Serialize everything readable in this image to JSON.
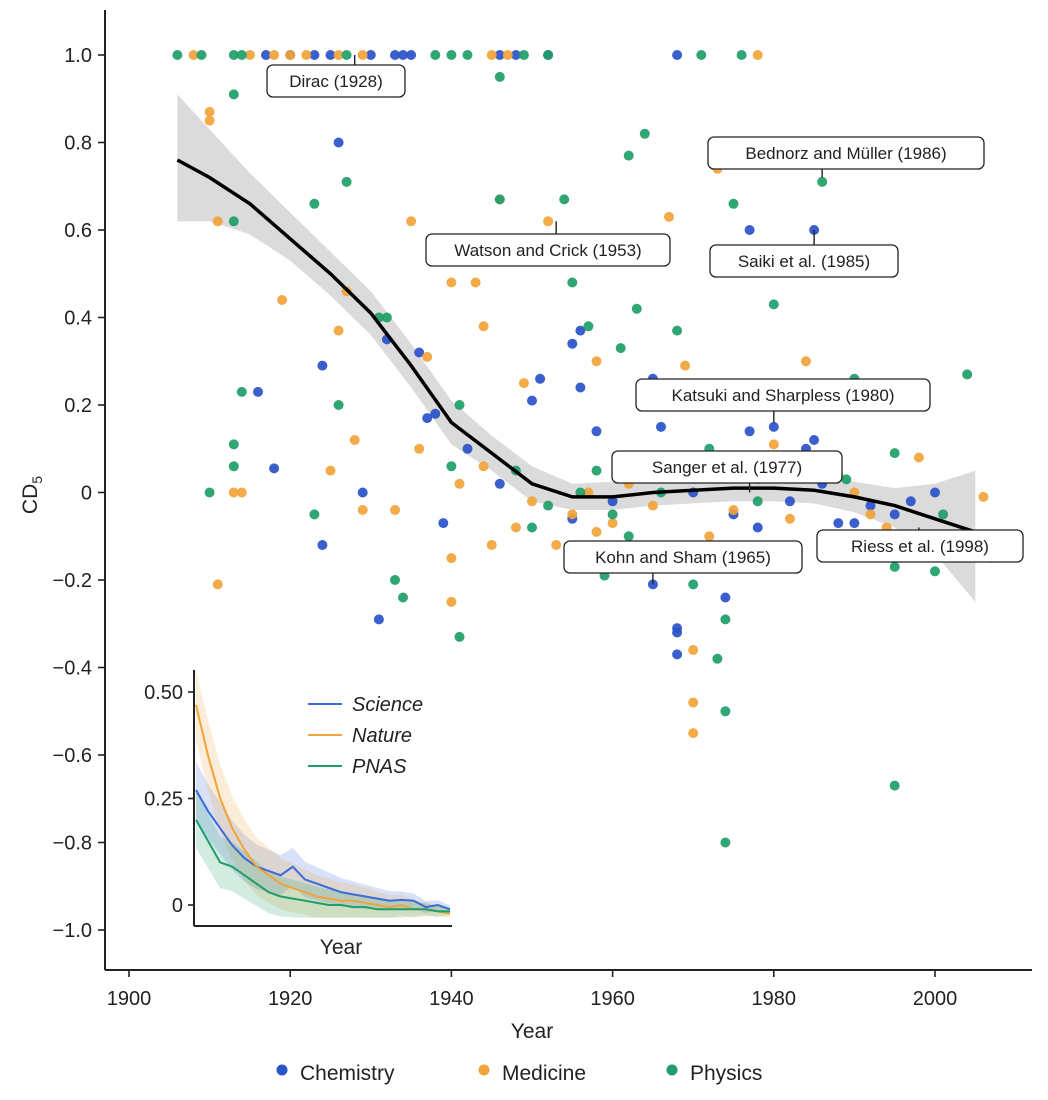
{
  "chart_data": {
    "type": "scatter",
    "xlabel": "Year",
    "ylabel": "CD",
    "ylabel_sub": "5",
    "xlim": [
      1897,
      2012
    ],
    "ylim": [
      -1.1,
      1.1
    ],
    "x_ticks": [
      1900,
      1920,
      1940,
      1960,
      1980,
      2000
    ],
    "y_ticks": [
      1.0,
      0.8,
      0.6,
      0.4,
      0.2,
      0,
      -0.2,
      -0.4,
      -0.6,
      -0.8,
      -1.0
    ],
    "y_tick_labels": [
      "1.0",
      "0.8",
      "0.6",
      "0.4",
      "0.2",
      "0",
      "−0.2",
      "−0.4",
      "−0.6",
      "−0.8",
      "−1.0"
    ],
    "legend": [
      {
        "name": "Chemistry",
        "color": "#2a53c9"
      },
      {
        "name": "Medicine",
        "color": "#f2a33a"
      },
      {
        "name": "Physics",
        "color": "#1e9e68"
      }
    ],
    "series": [
      {
        "name": "Chemistry",
        "color": "#2a53c9",
        "points": [
          [
            1917,
            1.0
          ],
          [
            1920,
            1.0
          ],
          [
            1923,
            1.0
          ],
          [
            1925,
            1.0
          ],
          [
            1930,
            1.0
          ],
          [
            1933,
            1.0
          ],
          [
            1934,
            1.0
          ],
          [
            1935,
            1.0
          ],
          [
            1946,
            1.0
          ],
          [
            1948,
            1.0
          ],
          [
            1952,
            1.0
          ],
          [
            1968,
            1.0
          ],
          [
            1926,
            0.8
          ],
          [
            1977,
            0.6
          ],
          [
            1985,
            0.6
          ],
          [
            1924,
            0.29
          ],
          [
            1916,
            0.23
          ],
          [
            1932,
            0.35
          ],
          [
            1936,
            0.32
          ],
          [
            1937,
            0.17
          ],
          [
            1938,
            0.18
          ],
          [
            1918,
            0.055
          ],
          [
            1924,
            -0.12
          ],
          [
            1929,
            0.0
          ],
          [
            1931,
            -0.29
          ],
          [
            1939,
            -0.07
          ],
          [
            1942,
            0.1
          ],
          [
            1946,
            0.02
          ],
          [
            1950,
            0.21
          ],
          [
            1951,
            0.26
          ],
          [
            1955,
            0.34
          ],
          [
            1956,
            0.37
          ],
          [
            1956,
            0.24
          ],
          [
            1958,
            0.14
          ],
          [
            1965,
            0.26
          ],
          [
            1966,
            0.15
          ],
          [
            1968,
            -0.31
          ],
          [
            1968,
            -0.32
          ],
          [
            1968,
            -0.37
          ],
          [
            1965,
            -0.21
          ],
          [
            1974,
            -0.24
          ],
          [
            1970,
            0.0
          ],
          [
            1972,
            0.08
          ],
          [
            1977,
            0.14
          ],
          [
            1980,
            0.15
          ],
          [
            1984,
            0.1
          ],
          [
            1985,
            0.12
          ],
          [
            1975,
            -0.05
          ],
          [
            1982,
            -0.02
          ],
          [
            1988,
            -0.07
          ],
          [
            1990,
            -0.07
          ],
          [
            1992,
            -0.03
          ],
          [
            1995,
            -0.05
          ],
          [
            1997,
            -0.02
          ],
          [
            2000,
            0.0
          ],
          [
            1960,
            -0.02
          ],
          [
            1955,
            -0.06
          ],
          [
            1962,
            0.03
          ],
          [
            1978,
            -0.08
          ],
          [
            1986,
            0.02
          ]
        ]
      },
      {
        "name": "Medicine",
        "color": "#f2a33a",
        "points": [
          [
            1908,
            1.0
          ],
          [
            1915,
            1.0
          ],
          [
            1918,
            1.0
          ],
          [
            1920,
            1.0
          ],
          [
            1922,
            1.0
          ],
          [
            1926,
            1.0
          ],
          [
            1929,
            1.0
          ],
          [
            1945,
            1.0
          ],
          [
            1947,
            1.0
          ],
          [
            1978,
            1.0
          ],
          [
            1910,
            0.87
          ],
          [
            1910,
            0.85
          ],
          [
            1911,
            0.62
          ],
          [
            1913,
            0.0
          ],
          [
            1914,
            0.0
          ],
          [
            1911,
            -0.21
          ],
          [
            1919,
            0.44
          ],
          [
            1927,
            0.46
          ],
          [
            1926,
            0.37
          ],
          [
            1935,
            0.62
          ],
          [
            1937,
            0.31
          ],
          [
            1940,
            0.48
          ],
          [
            1943,
            0.48
          ],
          [
            1944,
            0.38
          ],
          [
            1946,
            0.67
          ],
          [
            1952,
            0.62
          ],
          [
            1967,
            0.63
          ],
          [
            1973,
            0.74
          ],
          [
            1969,
            0.29
          ],
          [
            1984,
            0.3
          ],
          [
            1980,
            0.11
          ],
          [
            1928,
            0.12
          ],
          [
            1925,
            0.05
          ],
          [
            1929,
            -0.04
          ],
          [
            1933,
            -0.04
          ],
          [
            1940,
            -0.15
          ],
          [
            1940,
            -0.25
          ],
          [
            1945,
            -0.12
          ],
          [
            1949,
            0.25
          ],
          [
            1958,
            0.3
          ],
          [
            1970,
            -0.36
          ],
          [
            1970,
            -0.48
          ],
          [
            1970,
            -0.55
          ],
          [
            1972,
            -0.1
          ],
          [
            1960,
            -0.07
          ],
          [
            1955,
            -0.05
          ],
          [
            1950,
            -0.02
          ],
          [
            1962,
            0.02
          ],
          [
            1965,
            -0.03
          ],
          [
            1975,
            -0.04
          ],
          [
            1988,
            0.04
          ],
          [
            1992,
            -0.05
          ],
          [
            1998,
            0.08
          ],
          [
            2006,
            -0.01
          ],
          [
            2007,
            -0.15
          ],
          [
            1957,
            0.0
          ],
          [
            1953,
            -0.12
          ],
          [
            1948,
            -0.08
          ],
          [
            1964,
            0.06
          ],
          [
            1978,
            0.03
          ],
          [
            1982,
            -0.06
          ],
          [
            1990,
            0.0
          ],
          [
            1994,
            -0.08
          ],
          [
            1941,
            0.02
          ],
          [
            1944,
            0.06
          ],
          [
            1936,
            0.1
          ],
          [
            1958,
            -0.09
          ]
        ]
      },
      {
        "name": "Physics",
        "color": "#1e9e68",
        "points": [
          [
            1906,
            1.0
          ],
          [
            1909,
            1.0
          ],
          [
            1913,
            1.0
          ],
          [
            1914,
            1.0
          ],
          [
            1927,
            1.0
          ],
          [
            1938,
            1.0
          ],
          [
            1940,
            1.0
          ],
          [
            1942,
            1.0
          ],
          [
            1949,
            1.0
          ],
          [
            1952,
            1.0
          ],
          [
            1971,
            1.0
          ],
          [
            1976,
            1.0
          ],
          [
            1913,
            0.91
          ],
          [
            1946,
            0.95
          ],
          [
            1964,
            0.82
          ],
          [
            1962,
            0.77
          ],
          [
            1986,
            0.71
          ],
          [
            1927,
            0.71
          ],
          [
            1923,
            0.66
          ],
          [
            1946,
            0.67
          ],
          [
            1954,
            0.67
          ],
          [
            1949,
            0.56
          ],
          [
            1955,
            0.48
          ],
          [
            1952,
            0.55
          ],
          [
            1913,
            0.62
          ],
          [
            1968,
            0.37
          ],
          [
            1975,
            0.66
          ],
          [
            1980,
            0.43
          ],
          [
            1931,
            0.4
          ],
          [
            1932,
            0.4
          ],
          [
            1957,
            0.38
          ],
          [
            1961,
            0.33
          ],
          [
            1963,
            0.42
          ],
          [
            1914,
            0.23
          ],
          [
            1926,
            0.2
          ],
          [
            1941,
            0.2
          ],
          [
            2004,
            0.27
          ],
          [
            1990,
            0.26
          ],
          [
            1913,
            0.11
          ],
          [
            1913,
            0.06
          ],
          [
            1910,
            0.0
          ],
          [
            1923,
            -0.05
          ],
          [
            1933,
            -0.2
          ],
          [
            1934,
            -0.24
          ],
          [
            1941,
            -0.33
          ],
          [
            1959,
            -0.19
          ],
          [
            1973,
            -0.38
          ],
          [
            1974,
            -0.29
          ],
          [
            1974,
            -0.5
          ],
          [
            1974,
            -0.8
          ],
          [
            1995,
            -0.67
          ],
          [
            1970,
            -0.21
          ],
          [
            1995,
            -0.17
          ],
          [
            2000,
            -0.18
          ],
          [
            1948,
            0.05
          ],
          [
            1952,
            -0.03
          ],
          [
            1956,
            0.0
          ],
          [
            1960,
            -0.05
          ],
          [
            1966,
            0.0
          ],
          [
            1972,
            0.1
          ],
          [
            1978,
            -0.02
          ],
          [
            1984,
            0.05
          ],
          [
            1989,
            0.03
          ],
          [
            1995,
            0.09
          ],
          [
            2001,
            -0.05
          ],
          [
            1950,
            -0.08
          ],
          [
            1958,
            0.05
          ],
          [
            1962,
            -0.1
          ],
          [
            1940,
            0.06
          ]
        ]
      }
    ],
    "trend": {
      "name": "smoothed CD5",
      "color": "#000000",
      "x": [
        1906,
        1910,
        1915,
        1920,
        1925,
        1930,
        1935,
        1940,
        1945,
        1950,
        1955,
        1960,
        1965,
        1970,
        1975,
        1980,
        1985,
        1990,
        1995,
        2000,
        2005
      ],
      "y": [
        0.76,
        0.72,
        0.66,
        0.58,
        0.5,
        0.41,
        0.29,
        0.16,
        0.09,
        0.02,
        -0.01,
        -0.01,
        0.0,
        0.005,
        0.01,
        0.01,
        0.005,
        -0.01,
        -0.03,
        -0.06,
        -0.09
      ]
    },
    "ci_band": {
      "x": [
        1906,
        1910,
        1915,
        1920,
        1925,
        1930,
        1935,
        1940,
        1945,
        1950,
        1955,
        1960,
        1965,
        1970,
        1975,
        1980,
        1985,
        1990,
        1995,
        2000,
        2005
      ],
      "upper": [
        0.91,
        0.83,
        0.73,
        0.64,
        0.55,
        0.46,
        0.34,
        0.21,
        0.13,
        0.06,
        0.02,
        0.025,
        0.03,
        0.035,
        0.04,
        0.04,
        0.035,
        0.025,
        0.01,
        0.02,
        0.05
      ],
      "lower": [
        0.62,
        0.62,
        0.59,
        0.53,
        0.45,
        0.36,
        0.24,
        0.11,
        0.05,
        -0.02,
        -0.04,
        -0.04,
        -0.03,
        -0.025,
        -0.02,
        -0.02,
        -0.025,
        -0.045,
        -0.08,
        -0.14,
        -0.25
      ]
    },
    "annotations": [
      {
        "text": "Dirac (1928)",
        "x": 1928,
        "y": 1.0
      },
      {
        "text": "Bednorz and Müller (1986)",
        "x": 1986,
        "y": 0.72
      },
      {
        "text": "Watson and Crick (1953)",
        "x": 1953,
        "y": 0.62
      },
      {
        "text": "Saiki et al. (1985)",
        "x": 1985,
        "y": 0.6
      },
      {
        "text": "Katsuki and Sharpless (1980)",
        "x": 1980,
        "y": 0.16
      },
      {
        "text": "Sanger et al. (1977)",
        "x": 1977,
        "y": 0.0
      },
      {
        "text": "Kohn and Sham (1965)",
        "x": 1965,
        "y": -0.21
      },
      {
        "text": "Riess et al. (1998)",
        "x": 1998,
        "y": -0.08
      }
    ],
    "inset": {
      "type": "line",
      "xlabel": "Year",
      "ylim": [
        -0.03,
        0.55
      ],
      "y_ticks": [
        0,
        0.25,
        0.5
      ],
      "y_tick_labels": [
        "0",
        "0.25",
        "0.50"
      ],
      "x": [
        1900,
        1905,
        1910,
        1915,
        1920,
        1925,
        1930,
        1935,
        1940,
        1945,
        1950,
        1955,
        1960,
        1965,
        1970,
        1975,
        1980,
        1985,
        1990,
        1995,
        2000,
        2005
      ],
      "series": [
        {
          "name": "Science",
          "color": "#3a6bd8",
          "values": [
            0.27,
            0.22,
            0.18,
            0.14,
            0.11,
            0.09,
            0.08,
            0.07,
            0.09,
            0.06,
            0.05,
            0.04,
            0.03,
            0.025,
            0.02,
            0.015,
            0.01,
            0.012,
            0.01,
            -0.005,
            0.0,
            -0.01
          ]
        },
        {
          "name": "Nature",
          "color": "#f2a33a",
          "values": [
            0.47,
            0.35,
            0.25,
            0.18,
            0.13,
            0.09,
            0.07,
            0.05,
            0.04,
            0.03,
            0.02,
            0.015,
            0.01,
            0.01,
            0.005,
            0.0,
            -0.005,
            0.0,
            -0.01,
            -0.01,
            -0.015,
            -0.02
          ]
        },
        {
          "name": "PNAS",
          "color": "#1e9e68",
          "values": [
            0.2,
            0.15,
            0.1,
            0.09,
            0.07,
            0.05,
            0.03,
            0.02,
            0.015,
            0.01,
            0.005,
            0.0,
            0.0,
            -0.005,
            -0.005,
            -0.01,
            -0.01,
            -0.01,
            -0.01,
            -0.01,
            -0.015,
            -0.015
          ]
        }
      ]
    }
  }
}
